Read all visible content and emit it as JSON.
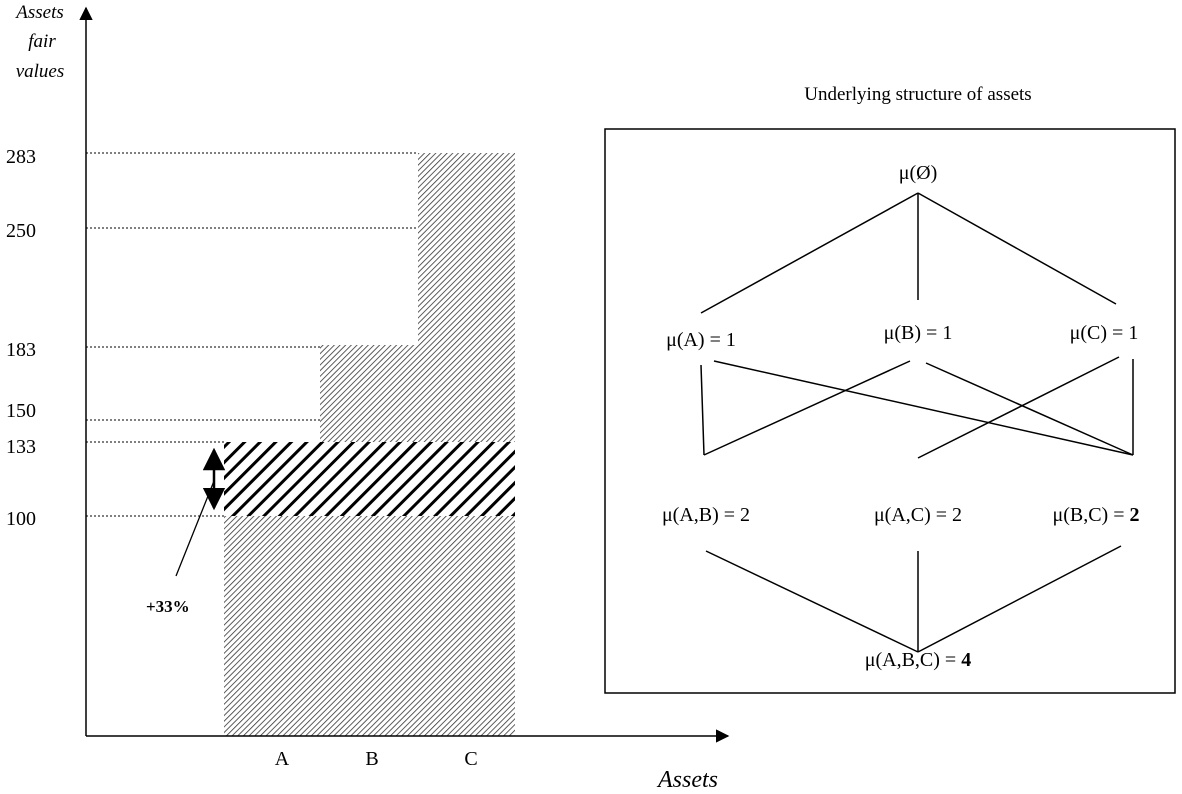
{
  "left_chart": {
    "y_axis_title": [
      "Assets",
      "fair",
      "values"
    ],
    "x_axis_title": "Assets",
    "y_ticks": [
      "283",
      "250",
      "183",
      "150",
      "133",
      "100"
    ],
    "x_categories": [
      "A",
      "B",
      "C"
    ],
    "increase_label": "+33%"
  },
  "right_panel": {
    "title": "Underlying structure of assets",
    "top_node": "μ(Ø)",
    "level1": [
      "μ(A) = 1",
      "μ(B) = 1",
      "μ(C) = 1"
    ],
    "level2": [
      {
        "prefix": "μ(A,B) = ",
        "value": "2",
        "bold": false
      },
      {
        "prefix": "μ(A,C) = ",
        "value": "2",
        "bold": false
      },
      {
        "prefix": "μ(B,C) = ",
        "value": "2",
        "bold": true
      }
    ],
    "bottom_node": {
      "prefix": "μ(A,B,C) = ",
      "value": "4"
    }
  }
}
